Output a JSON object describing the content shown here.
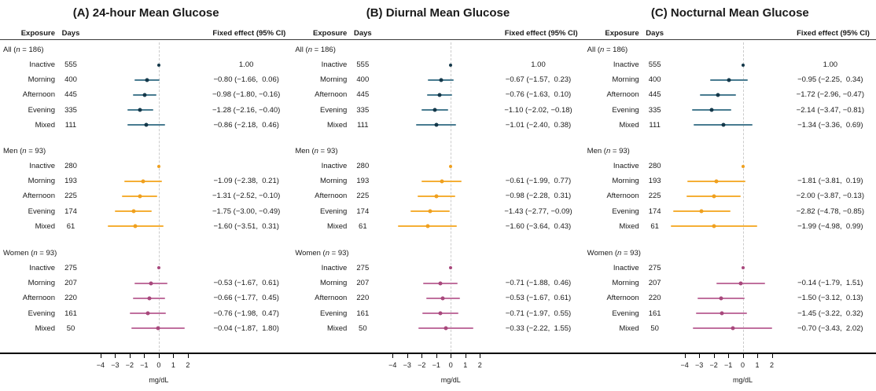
{
  "figure": {
    "columns": {
      "exposure": "Exposure",
      "days": "Days",
      "effect": "Fixed effect (95% CI)"
    },
    "xlabel": "mg/dL",
    "x_ticks": [
      -4,
      -3,
      -2,
      -1,
      0,
      1,
      2
    ]
  },
  "colors": {
    "all": {
      "dot": "#14384a",
      "line": "#487b90"
    },
    "men": {
      "dot": "#efa01f",
      "line": "#f5af36"
    },
    "women": {
      "dot": "#a8487c",
      "line": "#c0709e"
    },
    "zero_line": "#cbcbcb",
    "axis_line": "#000000",
    "header_line": "#3a3a3a"
  },
  "chart_data": [
    {
      "type": "forest",
      "title": "(A) 24-hour Mean Glucose",
      "xlabel": "mg/dL",
      "x_ticks": [
        -4,
        -3,
        -2,
        -1,
        0,
        1,
        2
      ],
      "xlim": [
        -4.97,
        2.87
      ],
      "groups": [
        {
          "label": "All",
          "n": "186",
          "color_key": "all",
          "rows": [
            {
              "exposure": "Inactive",
              "days": "555",
              "est": 0,
              "ref": true,
              "ci_text": "1.00"
            },
            {
              "exposure": "Morning",
              "days": "400",
              "est": -0.8,
              "lo": -1.66,
              "hi": 0.06,
              "ci_text": "−0.80 (−1.66,  0.06)"
            },
            {
              "exposure": "Afternoon",
              "days": "445",
              "est": -0.98,
              "lo": -1.8,
              "hi": -0.16,
              "ci_text": "−0.98 (−1.80, −0.16)"
            },
            {
              "exposure": "Evening",
              "days": "335",
              "est": -1.28,
              "lo": -2.16,
              "hi": -0.4,
              "ci_text": "−1.28 (−2.16, −0.40)"
            },
            {
              "exposure": "Mixed",
              "days": "111",
              "est": -0.86,
              "lo": -2.18,
              "hi": 0.46,
              "ci_text": "−0.86 (−2.18,  0.46)"
            }
          ]
        },
        {
          "label": "Men",
          "n": "93",
          "color_key": "men",
          "rows": [
            {
              "exposure": "Inactive",
              "days": "280",
              "est": 0,
              "ref": true,
              "ci_text": ""
            },
            {
              "exposure": "Morning",
              "days": "193",
              "est": -1.09,
              "lo": -2.38,
              "hi": 0.21,
              "ci_text": "−1.09 (−2.38,  0.21)"
            },
            {
              "exposure": "Afternoon",
              "days": "225",
              "est": -1.31,
              "lo": -2.52,
              "hi": -0.1,
              "ci_text": "−1.31 (−2.52, −0.10)"
            },
            {
              "exposure": "Evening",
              "days": "174",
              "est": -1.75,
              "lo": -3.0,
              "hi": -0.49,
              "ci_text": "−1.75 (−3.00, −0.49)"
            },
            {
              "exposure": "Mixed",
              "days": "61",
              "est": -1.6,
              "lo": -3.51,
              "hi": 0.31,
              "ci_text": "−1.60 (−3.51,  0.31)"
            }
          ]
        },
        {
          "label": "Women",
          "n": "93",
          "color_key": "women",
          "rows": [
            {
              "exposure": "Inactive",
              "days": "275",
              "est": 0,
              "ref": true,
              "ci_text": ""
            },
            {
              "exposure": "Morning",
              "days": "207",
              "est": -0.53,
              "lo": -1.67,
              "hi": 0.61,
              "ci_text": "−0.53 (−1.67,  0.61)"
            },
            {
              "exposure": "Afternoon",
              "days": "220",
              "est": -0.66,
              "lo": -1.77,
              "hi": 0.45,
              "ci_text": "−0.66 (−1.77,  0.45)"
            },
            {
              "exposure": "Evening",
              "days": "161",
              "est": -0.76,
              "lo": -1.98,
              "hi": 0.47,
              "ci_text": "−0.76 (−1.98,  0.47)"
            },
            {
              "exposure": "Mixed",
              "days": "50",
              "est": -0.04,
              "lo": -1.87,
              "hi": 1.8,
              "ci_text": "−0.04 (−1.87,  1.80)"
            }
          ]
        }
      ]
    },
    {
      "type": "forest",
      "title": "(B) Diurnal Mean Glucose",
      "xlabel": "mg/dL",
      "x_ticks": [
        -4,
        -3,
        -2,
        -1,
        0,
        1,
        2
      ],
      "xlim": [
        -4.97,
        2.87
      ],
      "groups": [
        {
          "label": "All",
          "n": "186",
          "color_key": "all",
          "rows": [
            {
              "exposure": "Inactive",
              "days": "555",
              "est": 0,
              "ref": true,
              "ci_text": "1.00"
            },
            {
              "exposure": "Morning",
              "days": "400",
              "est": -0.67,
              "lo": -1.57,
              "hi": 0.23,
              "ci_text": "−0.67 (−1.57,  0.23)"
            },
            {
              "exposure": "Afternoon",
              "days": "445",
              "est": -0.76,
              "lo": -1.63,
              "hi": 0.1,
              "ci_text": "−0.76 (−1.63,  0.10)"
            },
            {
              "exposure": "Evening",
              "days": "335",
              "est": -1.1,
              "lo": -2.02,
              "hi": -0.18,
              "ci_text": "−1.10 (−2.02, −0.18)"
            },
            {
              "exposure": "Mixed",
              "days": "111",
              "est": -1.01,
              "lo": -2.4,
              "hi": 0.38,
              "ci_text": "−1.01 (−2.40,  0.38)"
            }
          ]
        },
        {
          "label": "Men",
          "n": "93",
          "color_key": "men",
          "rows": [
            {
              "exposure": "Inactive",
              "days": "280",
              "est": 0,
              "ref": true,
              "ci_text": ""
            },
            {
              "exposure": "Morning",
              "days": "193",
              "est": -0.61,
              "lo": -1.99,
              "hi": 0.77,
              "ci_text": "−0.61 (−1.99,  0.77)"
            },
            {
              "exposure": "Afternoon",
              "days": "225",
              "est": -0.98,
              "lo": -2.28,
              "hi": 0.31,
              "ci_text": "−0.98 (−2.28,  0.31)"
            },
            {
              "exposure": "Evening",
              "days": "174",
              "est": -1.43,
              "lo": -2.77,
              "hi": -0.09,
              "ci_text": "−1.43 (−2.77, −0.09)"
            },
            {
              "exposure": "Mixed",
              "days": "61",
              "est": -1.6,
              "lo": -3.64,
              "hi": 0.43,
              "ci_text": "−1.60 (−3.64,  0.43)"
            }
          ]
        },
        {
          "label": "Women",
          "n": "93",
          "color_key": "women",
          "rows": [
            {
              "exposure": "Inactive",
              "days": "275",
              "est": 0,
              "ref": true,
              "ci_text": ""
            },
            {
              "exposure": "Morning",
              "days": "207",
              "est": -0.71,
              "lo": -1.88,
              "hi": 0.46,
              "ci_text": "−0.71 (−1.88,  0.46)"
            },
            {
              "exposure": "Afternoon",
              "days": "220",
              "est": -0.53,
              "lo": -1.67,
              "hi": 0.61,
              "ci_text": "−0.53 (−1.67,  0.61)"
            },
            {
              "exposure": "Evening",
              "days": "161",
              "est": -0.71,
              "lo": -1.97,
              "hi": 0.55,
              "ci_text": "−0.71 (−1.97,  0.55)"
            },
            {
              "exposure": "Mixed",
              "days": "50",
              "est": -0.33,
              "lo": -2.22,
              "hi": 1.55,
              "ci_text": "−0.33 (−2.22,  1.55)"
            }
          ]
        }
      ]
    },
    {
      "type": "forest",
      "title": "(C) Nocturnal Mean Glucose",
      "xlabel": "mg/dL",
      "x_ticks": [
        -4,
        -3,
        -2,
        -1,
        0,
        1,
        2
      ],
      "xlim": [
        -4.97,
        2.87
      ],
      "groups": [
        {
          "label": "All",
          "n": "186",
          "color_key": "all",
          "rows": [
            {
              "exposure": "Inactive",
              "days": "555",
              "est": 0,
              "ref": true,
              "ci_text": "1.00"
            },
            {
              "exposure": "Morning",
              "days": "400",
              "est": -0.95,
              "lo": -2.25,
              "hi": 0.34,
              "ci_text": "−0.95 (−2.25,  0.34)"
            },
            {
              "exposure": "Afternoon",
              "days": "445",
              "est": -1.72,
              "lo": -2.96,
              "hi": -0.47,
              "ci_text": "−1.72 (−2.96, −0.47)"
            },
            {
              "exposure": "Evening",
              "days": "335",
              "est": -2.14,
              "lo": -3.47,
              "hi": -0.81,
              "ci_text": "−2.14 (−3.47, −0.81)"
            },
            {
              "exposure": "Mixed",
              "days": "111",
              "est": -1.34,
              "lo": -3.36,
              "hi": 0.69,
              "ci_text": "−1.34 (−3.36,  0.69)"
            }
          ]
        },
        {
          "label": "Men",
          "n": "93",
          "color_key": "men",
          "rows": [
            {
              "exposure": "Inactive",
              "days": "280",
              "est": 0,
              "ref": true,
              "ci_text": ""
            },
            {
              "exposure": "Morning",
              "days": "193",
              "est": -1.81,
              "lo": -3.81,
              "hi": 0.19,
              "ci_text": "−1.81 (−3.81,  0.19)"
            },
            {
              "exposure": "Afternoon",
              "days": "225",
              "est": -2.0,
              "lo": -3.87,
              "hi": -0.13,
              "ci_text": "−2.00 (−3.87, −0.13)"
            },
            {
              "exposure": "Evening",
              "days": "174",
              "est": -2.82,
              "lo": -4.78,
              "hi": -0.85,
              "ci_text": "−2.82 (−4.78, −0.85)"
            },
            {
              "exposure": "Mixed",
              "days": "61",
              "est": -1.99,
              "lo": -4.98,
              "hi": 0.99,
              "ci_text": "−1.99 (−4.98,  0.99)"
            }
          ]
        },
        {
          "label": "Women",
          "n": "93",
          "color_key": "women",
          "rows": [
            {
              "exposure": "Inactive",
              "days": "275",
              "est": 0,
              "ref": true,
              "ci_text": ""
            },
            {
              "exposure": "Morning",
              "days": "207",
              "est": -0.14,
              "lo": -1.79,
              "hi": 1.51,
              "ci_text": "−0.14 (−1.79,  1.51)"
            },
            {
              "exposure": "Afternoon",
              "days": "220",
              "est": -1.5,
              "lo": -3.12,
              "hi": 0.13,
              "ci_text": "−1.50 (−3.12,  0.13)"
            },
            {
              "exposure": "Evening",
              "days": "161",
              "est": -1.45,
              "lo": -3.22,
              "hi": 0.32,
              "ci_text": "−1.45 (−3.22,  0.32)"
            },
            {
              "exposure": "Mixed",
              "days": "50",
              "est": -0.7,
              "lo": -3.43,
              "hi": 2.02,
              "ci_text": "−0.70 (−3.43,  2.02)"
            }
          ]
        }
      ]
    }
  ]
}
